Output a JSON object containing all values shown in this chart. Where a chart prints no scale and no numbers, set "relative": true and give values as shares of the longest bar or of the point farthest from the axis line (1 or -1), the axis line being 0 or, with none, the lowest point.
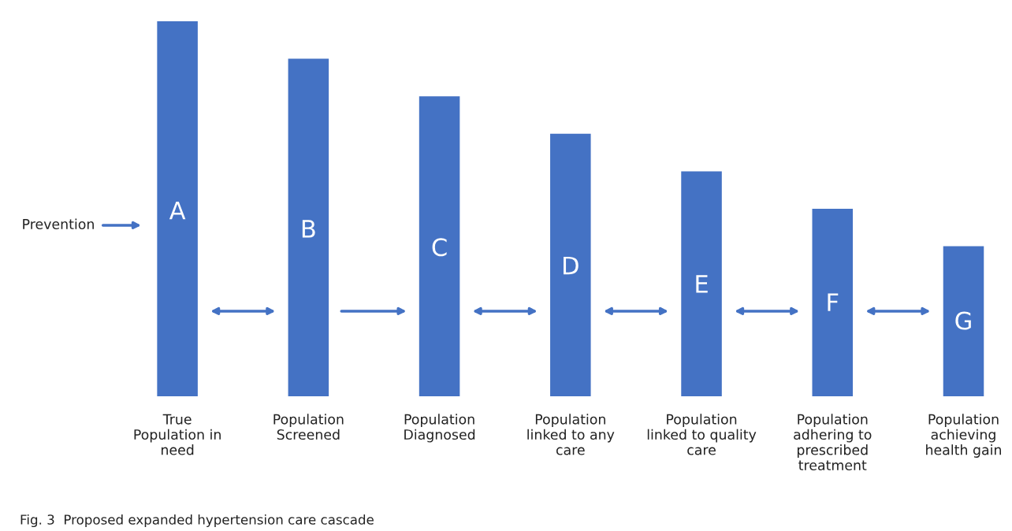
{
  "chart_data": {
    "type": "bar",
    "relative": true,
    "categories": [
      "True\nPopulation in\nneed",
      "Population\nScreened",
      "Population\nDiagnosed",
      "Population\nlinked to any\ncare",
      "Population\nlinked to quality\ncare",
      "Population\nadhering to\nprescribed\ntreatment",
      "Population\nachieving\nhealth gain"
    ],
    "values": [
      1,
      0.9,
      0.8,
      0.7,
      0.6,
      0.5,
      0.4
    ],
    "color": "#4472c4",
    "grid": false,
    "legend": false,
    "annotations": [
      "A",
      "B",
      "C",
      "D",
      "E",
      "F",
      "G",
      "Prevention",
      "Fig. 3  Proposed expanded hypertension care cascade"
    ]
  }
}
